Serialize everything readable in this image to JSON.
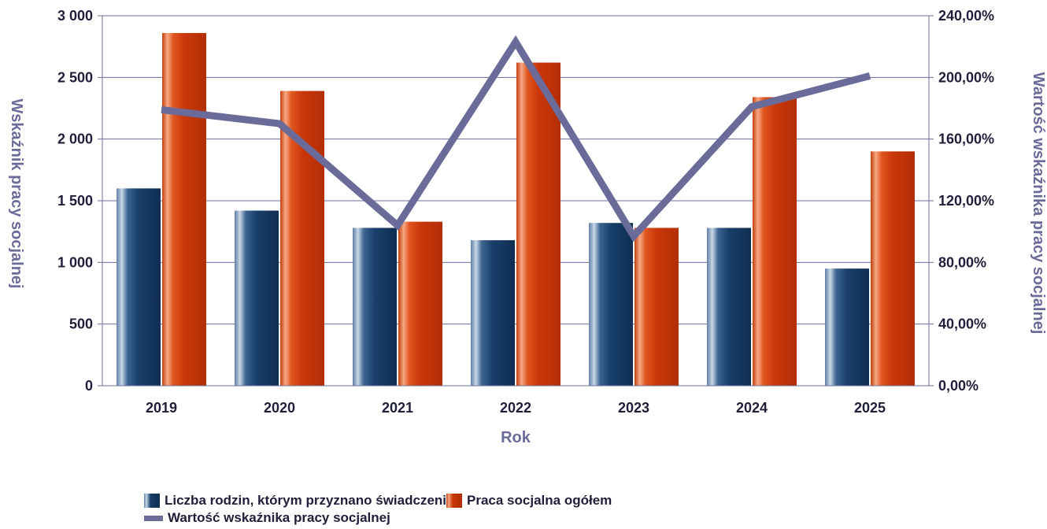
{
  "chart_data": {
    "type": "bar",
    "categories": [
      "2019",
      "2020",
      "2021",
      "2022",
      "2023",
      "2024",
      "2025"
    ],
    "xlabel": "Rok",
    "ylabel": "Wskaźnik pracy socjalnej",
    "y2label": "Wartość wskaźnika pracy socjalnej",
    "ylim": [
      0,
      3000
    ],
    "y2lim": [
      0,
      2.4
    ],
    "yticks": [
      "0",
      "500",
      "1 000",
      "1 500",
      "2 000",
      "2 500",
      "3 000"
    ],
    "y2ticks": [
      "0,00%",
      "40,00%",
      "80,00%",
      "120,00%",
      "160,00%",
      "200,00%",
      "240,00%"
    ],
    "grid": true,
    "legend_position": "bottom-left",
    "series": [
      {
        "name": "Liczba rodzin, którym przyznano świadczeni",
        "type": "bar",
        "axis": "left",
        "values": [
          1600,
          1420,
          1280,
          1180,
          1320,
          1280,
          950
        ],
        "color": "#1e4b7a"
      },
      {
        "name": "Praca socjalna ogółem",
        "type": "bar",
        "axis": "left",
        "values": [
          2860,
          2390,
          1330,
          2620,
          1280,
          2340,
          1900
        ],
        "color": "#d94a1c"
      },
      {
        "name": "Wartość wskaźnika pracy socjalnej",
        "type": "line",
        "axis": "right",
        "values": [
          1.79,
          1.7,
          1.04,
          2.23,
          0.97,
          1.81,
          2.01
        ],
        "color": "#6b6b9a"
      }
    ]
  }
}
